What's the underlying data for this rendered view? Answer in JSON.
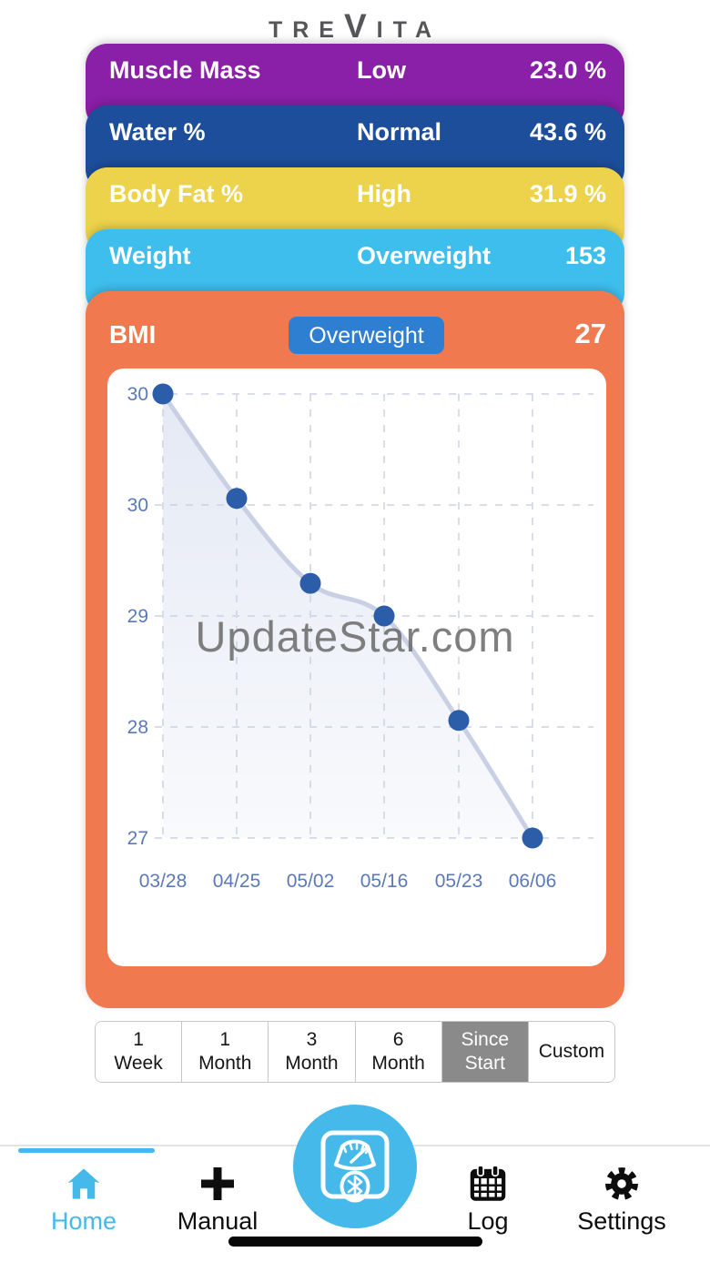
{
  "brand": {
    "pre": "TRE",
    "v": "V",
    "post": "ITA"
  },
  "watermark": "UpdateStar.com",
  "metrics": [
    {
      "label": "Muscle Mass",
      "status": "Low",
      "value": "23.0 %",
      "color": "#8A1FA8"
    },
    {
      "label": "Water %",
      "status": "Normal",
      "value": "43.6 %",
      "color": "#1C4E9B"
    },
    {
      "label": "Body Fat %",
      "status": "High",
      "value": "31.9 %",
      "color": "#EDD24B"
    },
    {
      "label": "Weight",
      "status": "Overweight",
      "value": "153",
      "color": "#3EBEEC"
    }
  ],
  "bmi": {
    "label": "BMI",
    "status": "Overweight",
    "value": "27",
    "card_color": "#F0794F",
    "badge_color": "#2E7FD2"
  },
  "chart_data": {
    "type": "line",
    "series_name": "BMI",
    "x_labels": [
      "03/28",
      "04/25",
      "05/02",
      "05/16",
      "05/23",
      "06/06"
    ],
    "values": [
      30.4,
      29.6,
      28.95,
      28.7,
      27.9,
      27.0
    ],
    "y_tick_labels": [
      "30",
      "30",
      "29",
      "28",
      "27"
    ],
    "ylim": [
      27.0,
      30.4
    ],
    "grid": "dashed",
    "legend": false,
    "line_color": "#C9D0E4",
    "point_color": "#2B5DA9",
    "area_color": "#C9D3EA",
    "tick_color": "#5B79B8"
  },
  "range_tabs": {
    "selected_index": 4,
    "selected_bg": "#8A8A8A",
    "options": [
      {
        "lines": [
          "1",
          "Week"
        ]
      },
      {
        "lines": [
          "1",
          "Month"
        ]
      },
      {
        "lines": [
          "3",
          "Month"
        ]
      },
      {
        "lines": [
          "6",
          "Month"
        ]
      },
      {
        "lines": [
          "Since",
          "Start"
        ]
      },
      {
        "lines": [
          "Custom"
        ]
      }
    ]
  },
  "nav": {
    "accent": "#45B9EA",
    "items": [
      {
        "label": "Home",
        "icon": "home-icon",
        "active": true
      },
      {
        "label": "Manual",
        "icon": "plus-icon",
        "active": false
      },
      {
        "label": "Log",
        "icon": "calendar-icon",
        "active": false
      },
      {
        "label": "Settings",
        "icon": "gear-icon",
        "active": false
      }
    ],
    "center_button_icon": "scale-bluetooth-icon"
  }
}
